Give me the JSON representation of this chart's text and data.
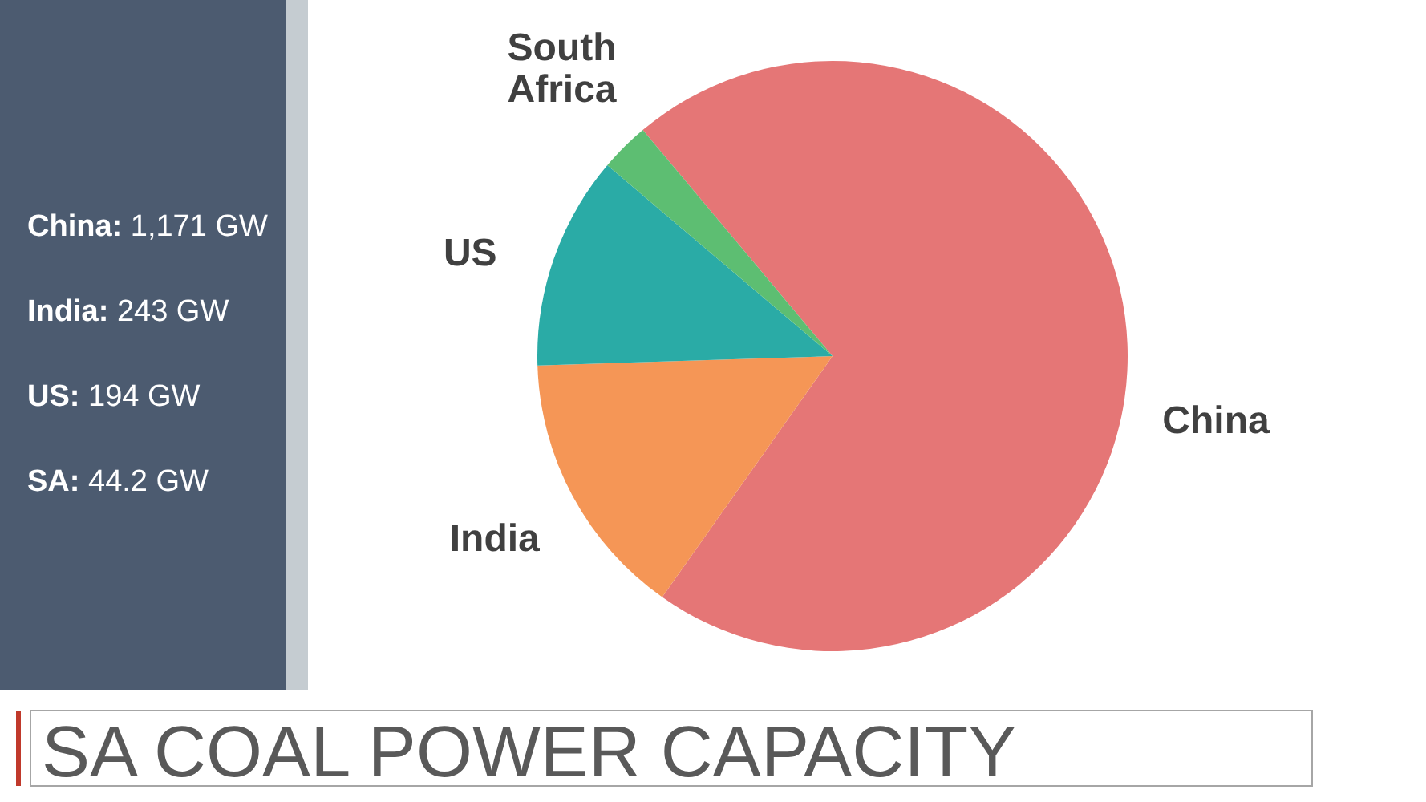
{
  "chart_data": [
    {
      "type": "other",
      "annotations": [
        "China: 1,171 GW",
        "India: 243 GW",
        "US: 194 GW",
        "SA: 44.2 GW"
      ]
    },
    {
      "type": "pie",
      "title": "SA COAL POWER CAPACITY",
      "categories": [
        "China",
        "India",
        "US",
        "South Africa"
      ],
      "values": [
        70.9,
        14.7,
        11.7,
        2.7
      ],
      "colors": [
        "#e57676",
        "#f59656",
        "#2aaba6",
        "#5dbe72"
      ]
    }
  ]
}
